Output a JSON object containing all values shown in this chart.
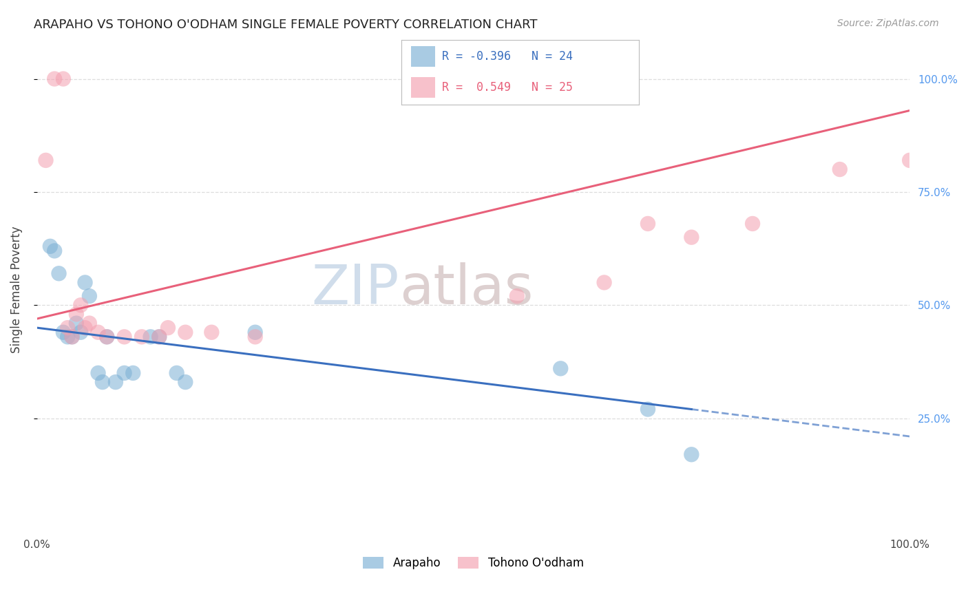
{
  "title": "ARAPAHO VS TOHONO O'ODHAM SINGLE FEMALE POVERTY CORRELATION CHART",
  "source": "Source: ZipAtlas.com",
  "ylabel": "Single Female Poverty",
  "watermark_zip": "ZIP",
  "watermark_atlas": "atlas",
  "arapaho_R": -0.396,
  "arapaho_N": 24,
  "tohono_R": 0.549,
  "tohono_N": 25,
  "arapaho_color": "#7BAFD4",
  "tohono_color": "#F4A0B0",
  "arapaho_line_color": "#3A6FBF",
  "tohono_line_color": "#E8607A",
  "arapaho_x": [
    1.5,
    2.0,
    2.5,
    3.0,
    3.5,
    4.0,
    4.5,
    5.0,
    5.5,
    6.0,
    7.0,
    7.5,
    8.0,
    9.0,
    10.0,
    11.0,
    13.0,
    14.0,
    16.0,
    17.0,
    25.0,
    60.0,
    70.0,
    75.0
  ],
  "arapaho_y": [
    63.0,
    62.0,
    57.0,
    44.0,
    43.0,
    43.0,
    46.0,
    44.0,
    55.0,
    52.0,
    35.0,
    33.0,
    43.0,
    33.0,
    35.0,
    35.0,
    43.0,
    43.0,
    35.0,
    33.0,
    44.0,
    36.0,
    27.0,
    17.0
  ],
  "tohono_x": [
    1.0,
    2.0,
    3.0,
    3.5,
    4.0,
    4.5,
    5.0,
    5.5,
    6.0,
    7.0,
    8.0,
    10.0,
    12.0,
    14.0,
    15.0,
    17.0,
    20.0,
    25.0,
    55.0,
    65.0,
    70.0,
    75.0,
    82.0,
    92.0,
    100.0
  ],
  "tohono_y": [
    82.0,
    100.0,
    100.0,
    45.0,
    43.0,
    48.0,
    50.0,
    45.0,
    46.0,
    44.0,
    43.0,
    43.0,
    43.0,
    43.0,
    45.0,
    44.0,
    44.0,
    43.0,
    52.0,
    55.0,
    68.0,
    65.0,
    68.0,
    80.0,
    82.0
  ],
  "blue_line_x0": 0.0,
  "blue_line_y0": 45.0,
  "blue_line_x1": 75.0,
  "blue_line_y1": 27.0,
  "blue_dash_x0": 75.0,
  "blue_dash_y0": 27.0,
  "blue_dash_x1": 100.0,
  "blue_dash_y1": 21.0,
  "pink_line_x0": 0.0,
  "pink_line_y0": 47.0,
  "pink_line_x1": 100.0,
  "pink_line_y1": 93.0,
  "xlim": [
    0,
    100
  ],
  "ylim": [
    0,
    107
  ],
  "background_color": "#FFFFFF",
  "grid_color": "#DDDDDD",
  "legend_blue_text": "R = -0.396   N = 24",
  "legend_pink_text": "R =  0.549   N = 25"
}
